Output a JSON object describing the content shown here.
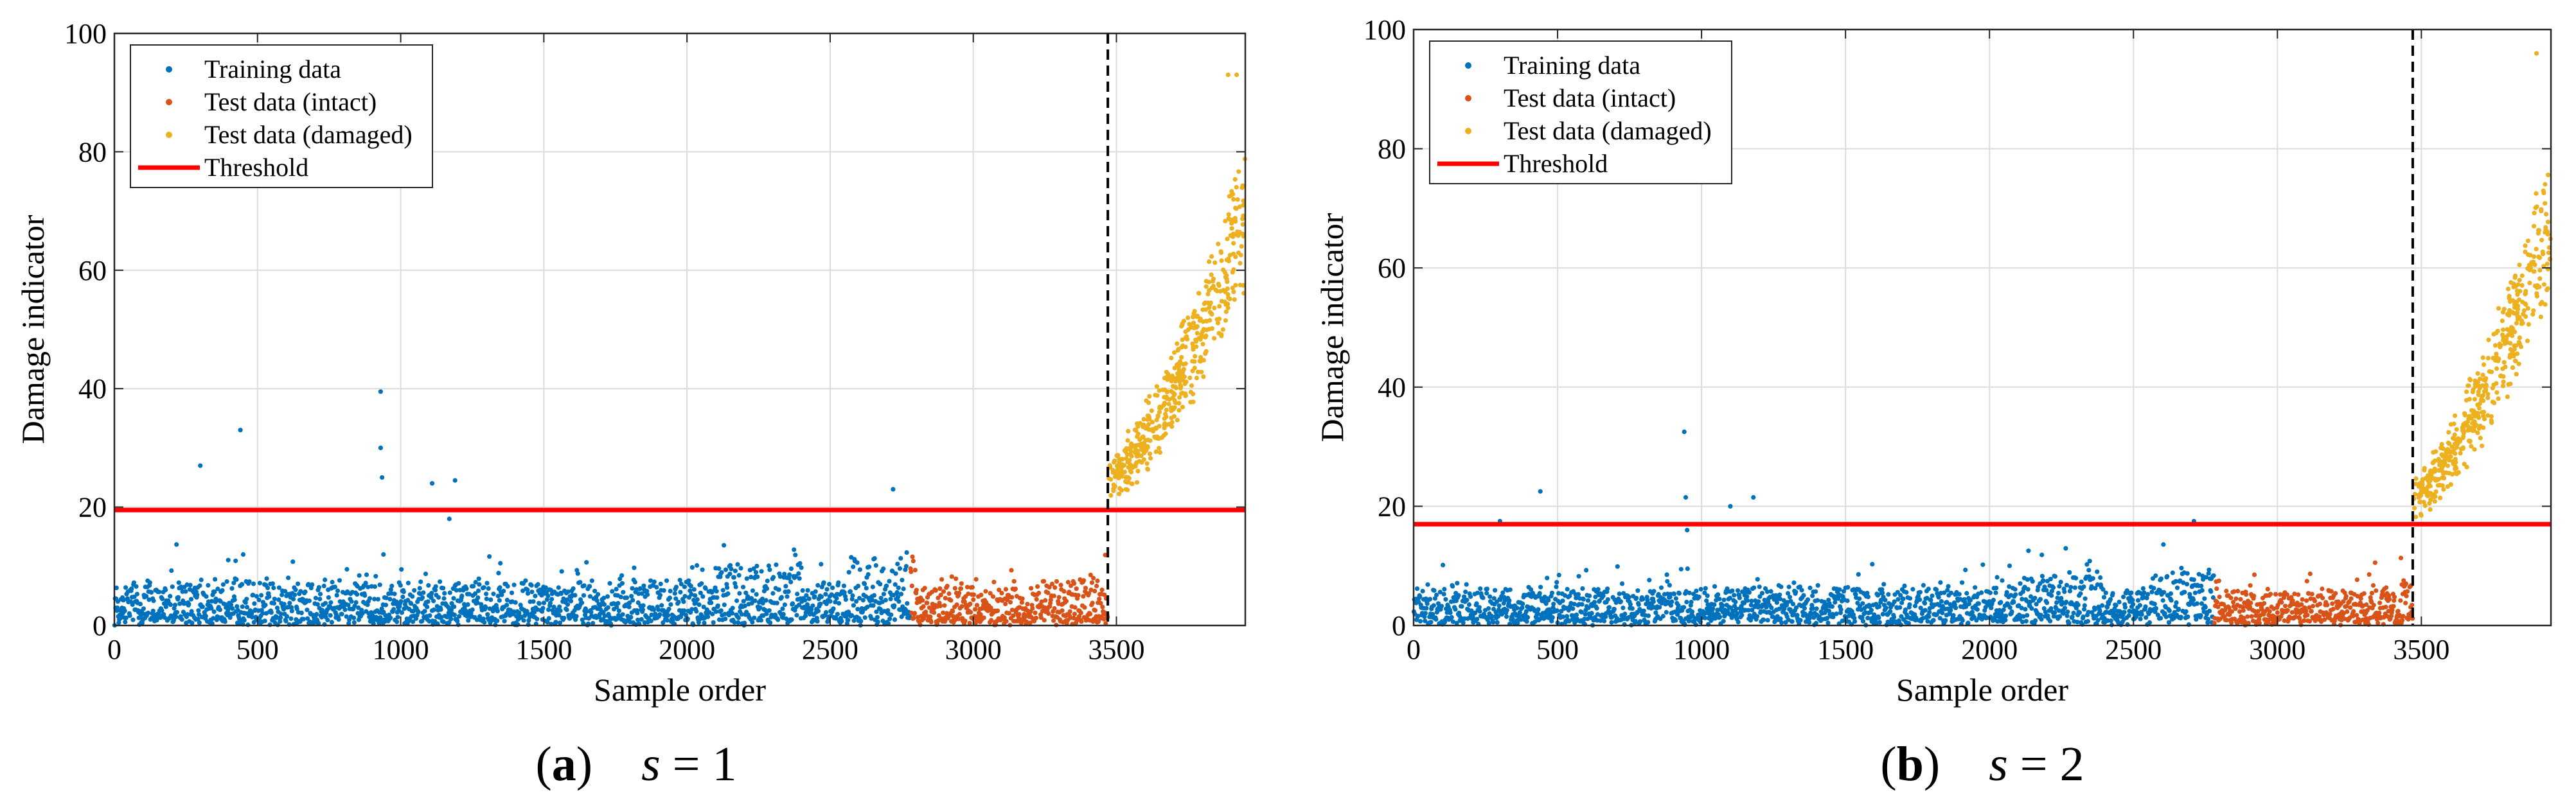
{
  "colors": {
    "training": "#0072BD",
    "intact": "#D95319",
    "damaged": "#EDB120",
    "threshold": "#FF0000",
    "divider": "#000000",
    "grid": "#DCDCDC"
  },
  "chart_data": [
    {
      "type": "scatter",
      "panel": "a",
      "caption_letter": "a",
      "caption_formula": "s = 1",
      "xlabel": "Sample order",
      "ylabel": "Damage indicator",
      "xlim": [
        0,
        3950
      ],
      "ylim": [
        0,
        100
      ],
      "xticks": [
        0,
        500,
        1000,
        1500,
        2000,
        2500,
        3000,
        3500
      ],
      "yticks": [
        0,
        20,
        40,
        60,
        80,
        100
      ],
      "grid": true,
      "legend_position": "top-left",
      "legend": [
        "Training data",
        "Test data (intact)",
        "Test data (damaged)",
        "Threshold"
      ],
      "threshold": 19.5,
      "divider_x": 3470,
      "series": [
        {
          "name": "Training data",
          "x_range": [
            1,
            2780
          ],
          "typical_range": [
            0,
            12
          ],
          "points": 2780
        },
        {
          "name": "Test data (intact)",
          "x_range": [
            2781,
            3470
          ],
          "typical_range": [
            0,
            12
          ],
          "points": 690
        },
        {
          "name": "Test data (damaged)",
          "x_range": [
            3471,
            3950
          ],
          "trend_start": 25,
          "trend_end": 70,
          "points": 480
        }
      ],
      "outliers": [
        {
          "x": 300,
          "y": 27
        },
        {
          "x": 440,
          "y": 33
        },
        {
          "x": 450,
          "y": 12
        },
        {
          "x": 930,
          "y": 39.5
        },
        {
          "x": 930,
          "y": 30
        },
        {
          "x": 935,
          "y": 25
        },
        {
          "x": 940,
          "y": 12
        },
        {
          "x": 1110,
          "y": 24
        },
        {
          "x": 1190,
          "y": 24.5
        },
        {
          "x": 1170,
          "y": 18
        },
        {
          "x": 2720,
          "y": 23
        },
        {
          "x": 3920,
          "y": 93
        },
        {
          "x": 3890,
          "y": 93
        }
      ]
    },
    {
      "type": "scatter",
      "panel": "b",
      "caption_letter": "b",
      "caption_formula": "s = 2",
      "xlabel": "Sample order",
      "ylabel": "Damage indicator",
      "xlim": [
        0,
        3950
      ],
      "ylim": [
        0,
        100
      ],
      "xticks": [
        0,
        500,
        1000,
        1500,
        2000,
        2500,
        3000,
        3500
      ],
      "yticks": [
        0,
        20,
        40,
        60,
        80,
        100
      ],
      "grid": true,
      "legend_position": "top-left",
      "legend": [
        "Training data",
        "Test data (intact)",
        "Test data (damaged)",
        "Threshold"
      ],
      "threshold": 17,
      "divider_x": 3470,
      "series": [
        {
          "name": "Training data",
          "x_range": [
            1,
            2780
          ],
          "typical_range": [
            0,
            10
          ],
          "points": 2780
        },
        {
          "name": "Test data (intact)",
          "x_range": [
            2781,
            3470
          ],
          "typical_range": [
            0,
            10
          ],
          "points": 690
        },
        {
          "name": "Test data (damaged)",
          "x_range": [
            3471,
            3950
          ],
          "trend_start": 22,
          "trend_end": 68,
          "points": 480
        }
      ],
      "outliers": [
        {
          "x": 300,
          "y": 17.5
        },
        {
          "x": 440,
          "y": 22.5
        },
        {
          "x": 940,
          "y": 32.5
        },
        {
          "x": 945,
          "y": 21.5
        },
        {
          "x": 950,
          "y": 16
        },
        {
          "x": 1100,
          "y": 20
        },
        {
          "x": 1180,
          "y": 21.5
        },
        {
          "x": 2710,
          "y": 17.5
        },
        {
          "x": 3900,
          "y": 96
        }
      ]
    }
  ]
}
